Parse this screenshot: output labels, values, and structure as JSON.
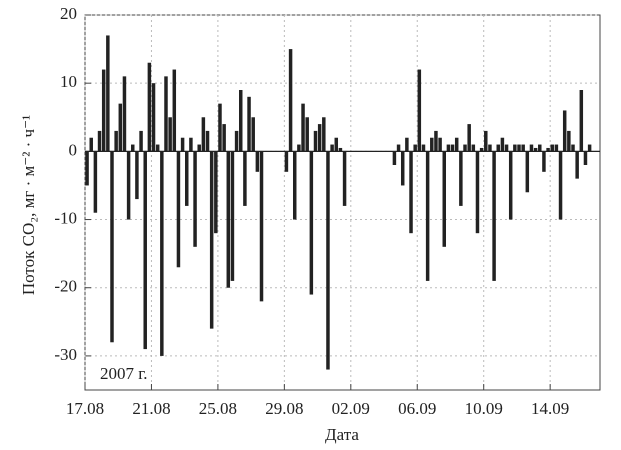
{
  "chart_data": {
    "type": "bar",
    "y_label": "Поток CO₂, мг · м⁻² · ч⁻¹",
    "x_label": "Дата",
    "annotation": "2007 г.",
    "color": "#222222",
    "grid": true,
    "ylim": [
      -35,
      20
    ],
    "yticks": [
      -30,
      -20,
      -10,
      0,
      10,
      20
    ],
    "categories": [
      "17.08",
      null,
      null,
      null,
      null,
      null,
      null,
      null,
      null,
      null,
      null,
      null,
      null,
      null,
      null,
      null,
      "21.08",
      null,
      null,
      null,
      null,
      null,
      null,
      null,
      null,
      null,
      null,
      null,
      null,
      null,
      null,
      null,
      "25.08",
      null,
      null,
      null,
      null,
      null,
      null,
      null,
      null,
      null,
      null,
      null,
      null,
      null,
      null,
      null,
      "29.08",
      null,
      null,
      null,
      null,
      null,
      null,
      null,
      null,
      null,
      null,
      null,
      null,
      null,
      null,
      null,
      "02.09",
      null,
      null,
      null,
      null,
      null,
      null,
      null,
      null,
      null,
      null,
      null,
      null,
      null,
      null,
      null,
      "06.09",
      null,
      null,
      null,
      null,
      null,
      null,
      null,
      null,
      null,
      null,
      null,
      null,
      null,
      null,
      null,
      "10.09",
      null,
      null,
      null,
      null,
      null,
      null,
      null,
      null,
      null,
      null,
      null,
      null,
      null,
      null,
      null,
      "14.09",
      null,
      null,
      null,
      null,
      null,
      null,
      null,
      null,
      null,
      null,
      null
    ],
    "values": [
      -5,
      2,
      -9,
      3,
      12,
      17,
      -28,
      3,
      7,
      11,
      -10,
      1,
      -7,
      3,
      -29,
      13,
      10,
      1,
      -30,
      11,
      5,
      12,
      -17,
      2,
      -8,
      2,
      -14,
      1,
      5,
      3,
      -26,
      -12,
      7,
      4,
      -20,
      -19,
      3,
      9,
      -8,
      8,
      5,
      -3,
      -22,
      0,
      null,
      null,
      null,
      null,
      -3,
      15,
      -10,
      1,
      7,
      5,
      -21,
      3,
      4,
      5,
      -32,
      1,
      2,
      0.5,
      -8,
      null,
      null,
      null,
      null,
      null,
      null,
      null,
      null,
      null,
      null,
      null,
      -2,
      1,
      -5,
      2,
      -12,
      1,
      12,
      1,
      -19,
      2,
      3,
      2,
      -14,
      1,
      1,
      2,
      -8,
      1,
      4,
      1,
      -12,
      0.5,
      3,
      1,
      -19,
      1,
      2,
      1,
      -10,
      1,
      1,
      1,
      -6,
      1,
      0.5,
      1,
      -3,
      0.5,
      1,
      1,
      -10,
      6,
      3,
      1,
      -4,
      9,
      -2,
      1,
      null,
      null
    ]
  }
}
